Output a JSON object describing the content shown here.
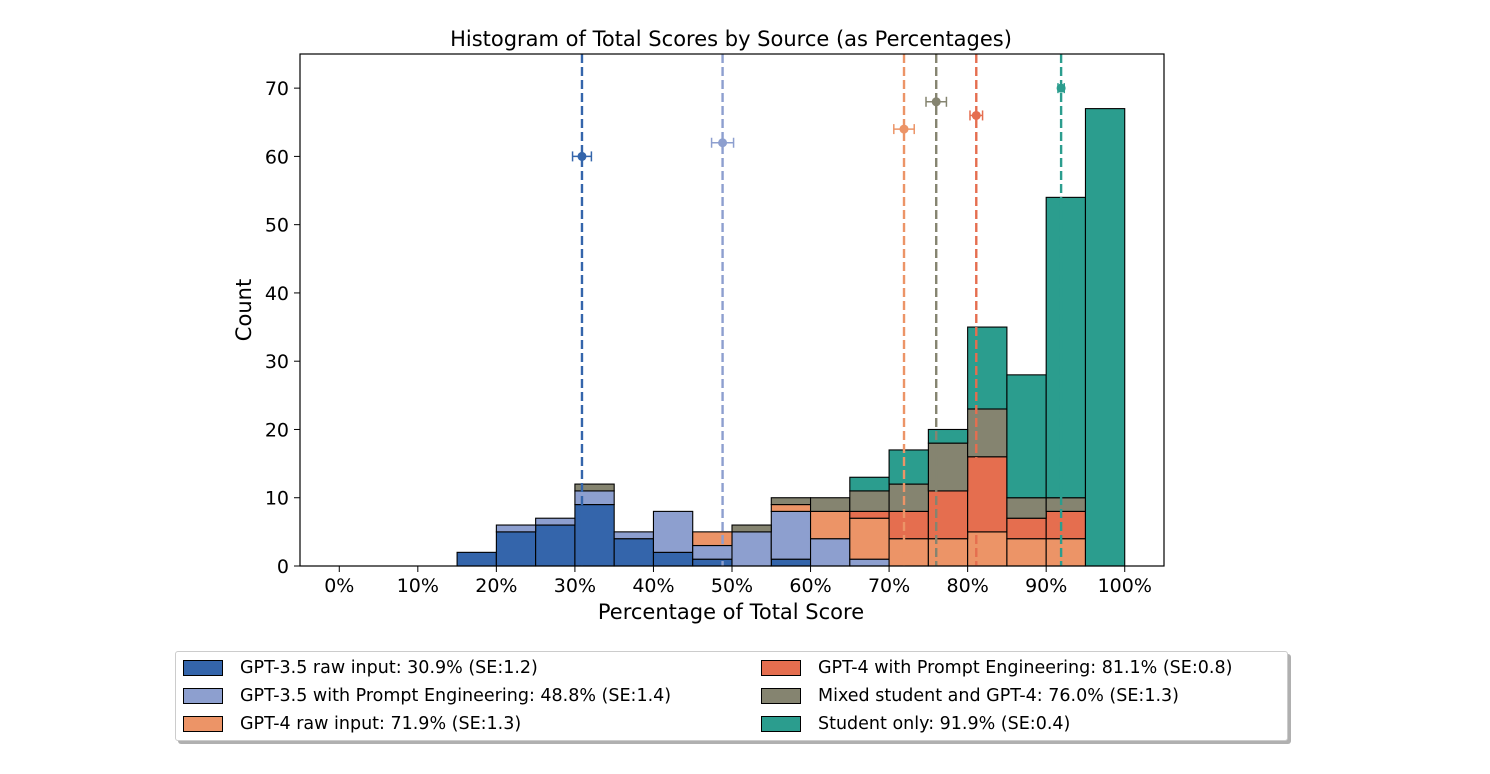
{
  "chart_data": {
    "type": "bar",
    "stacked": true,
    "title": "Histogram of Total Scores by Source (as Percentages)",
    "xlabel": "Percentage of Total Score",
    "ylabel": "Count",
    "xlim": [
      -0.05,
      1.05
    ],
    "ylim": [
      0,
      75
    ],
    "xticks": [
      0,
      0.1,
      0.2,
      0.3,
      0.4,
      0.5,
      0.6,
      0.7,
      0.8,
      0.9,
      1.0
    ],
    "xtick_labels": [
      "0%",
      "10%",
      "20%",
      "30%",
      "40%",
      "50%",
      "60%",
      "70%",
      "80%",
      "90%",
      "100%"
    ],
    "yticks": [
      0,
      10,
      20,
      30,
      40,
      50,
      60,
      70
    ],
    "ytick_labels": [
      "0",
      "10",
      "20",
      "30",
      "40",
      "50",
      "60",
      "70"
    ],
    "bin_edges": [
      0,
      0.05,
      0.1,
      0.15,
      0.2,
      0.25,
      0.3,
      0.35,
      0.4,
      0.45,
      0.5,
      0.55,
      0.6,
      0.65,
      0.7,
      0.75,
      0.8,
      0.85,
      0.9,
      0.95,
      1.0
    ],
    "series": [
      {
        "name": "GPT-3.5 raw input: 30.9% (SE:1.2)",
        "color": "#3465ab",
        "values": [
          0,
          0,
          0,
          2,
          5,
          6,
          9,
          4,
          2,
          1,
          0,
          1,
          0,
          0,
          0,
          0,
          0,
          0,
          0,
          0
        ],
        "mean": 0.309,
        "se": 0.012,
        "marker_y": 60
      },
      {
        "name": "GPT-3.5 with Prompt Engineering: 48.8% (SE:1.4)",
        "color": "#8d9fcf",
        "values": [
          0,
          0,
          0,
          0,
          1,
          1,
          2,
          1,
          6,
          2,
          5,
          7,
          4,
          1,
          0,
          0,
          0,
          0,
          0,
          0
        ],
        "mean": 0.488,
        "se": 0.014,
        "marker_y": 62
      },
      {
        "name": "GPT-4 raw input: 71.9% (SE:1.3)",
        "color": "#ec9467",
        "values": [
          0,
          0,
          0,
          0,
          0,
          0,
          0,
          0,
          0,
          2,
          0,
          1,
          4,
          6,
          4,
          4,
          5,
          4,
          4,
          0
        ],
        "mean": 0.719,
        "se": 0.013,
        "marker_y": 64
      },
      {
        "name": "GPT-4 with Prompt Engineering: 81.1% (SE:0.8)",
        "color": "#e56e4f",
        "values": [
          0,
          0,
          0,
          0,
          0,
          0,
          0,
          0,
          0,
          0,
          0,
          0,
          0,
          1,
          4,
          7,
          11,
          3,
          4,
          0
        ],
        "mean": 0.811,
        "se": 0.008,
        "marker_y": 66
      },
      {
        "name": "Mixed student and GPT-4: 76.0% (SE:1.3)",
        "color": "#858470",
        "values": [
          0,
          0,
          0,
          0,
          0,
          0,
          1,
          0,
          0,
          0,
          1,
          1,
          2,
          3,
          4,
          7,
          7,
          3,
          2,
          0
        ],
        "mean": 0.76,
        "se": 0.013,
        "marker_y": 68
      },
      {
        "name": "Student only: 91.9% (SE:0.4)",
        "color": "#2b9d8e",
        "values": [
          0,
          0,
          0,
          0,
          0,
          0,
          0,
          0,
          0,
          0,
          0,
          0,
          0,
          2,
          5,
          2,
          12,
          18,
          44,
          67
        ],
        "mean": 0.919,
        "se": 0.004,
        "marker_y": 70
      }
    ],
    "legend_position": "lower-center"
  }
}
